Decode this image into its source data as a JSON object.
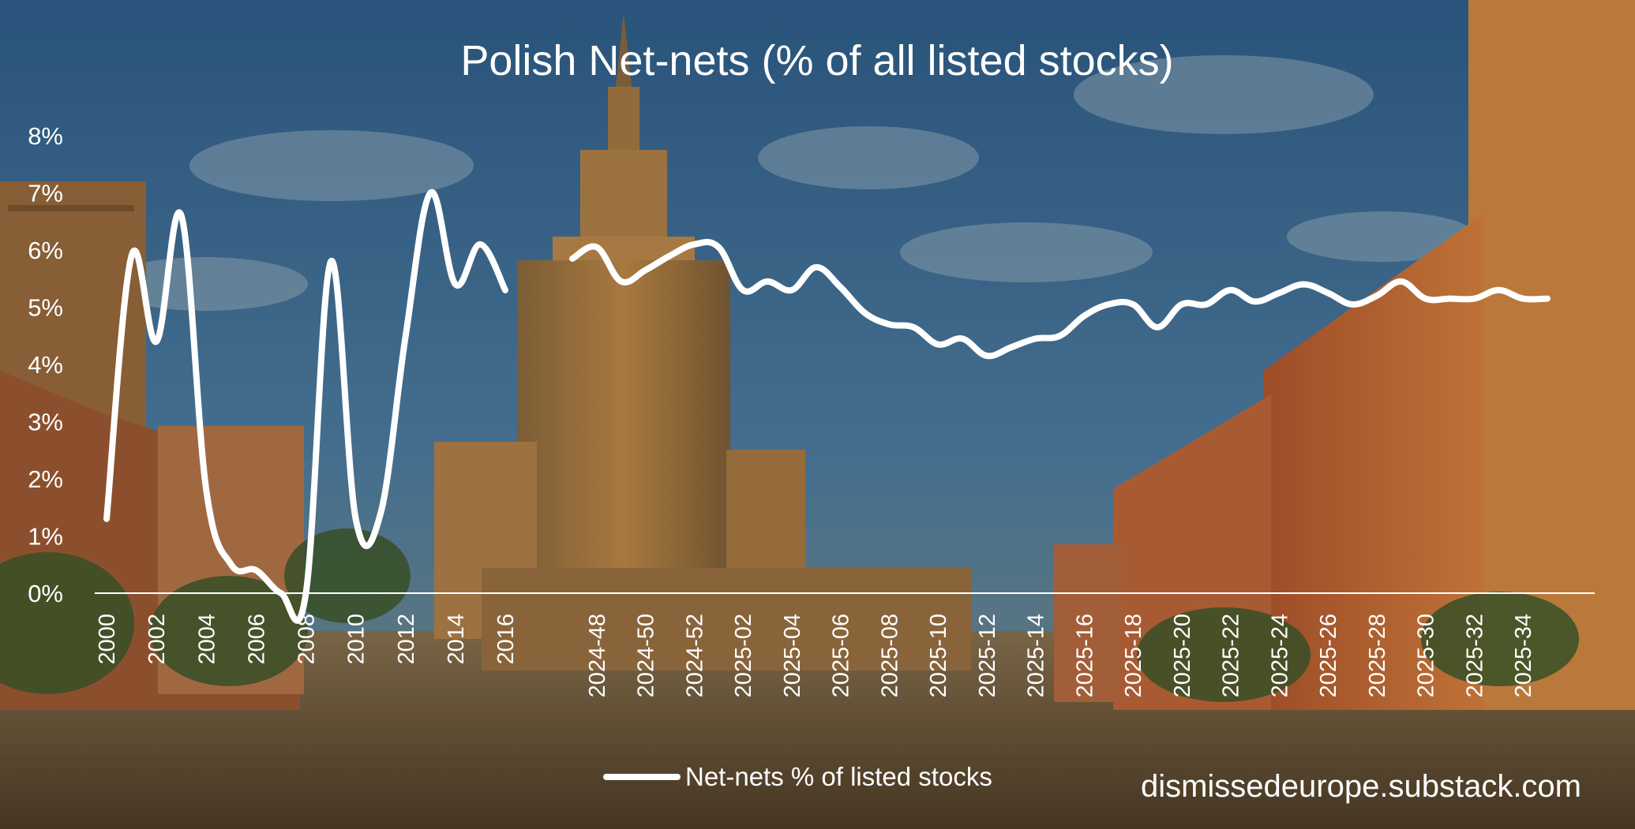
{
  "watermark": "dismissedeurope.substack.com",
  "colors": {
    "line": "#ffffff",
    "text": "#ffffff",
    "sky": "#3f6f96",
    "ground": "#6b5536",
    "building": "#b07a3e"
  },
  "chart_data": {
    "type": "line",
    "title": "Polish Net-nets (% of all listed stocks)",
    "xlabel": "",
    "ylabel": "",
    "ylim": [
      0,
      8
    ],
    "y_tick_labels": [
      "0%",
      "1%",
      "2%",
      "3%",
      "4%",
      "5%",
      "6%",
      "7%",
      "8%"
    ],
    "grid": false,
    "legend_position": "bottom",
    "x_tick_labels": [
      "2000",
      "2002",
      "2004",
      "2006",
      "2008",
      "2010",
      "2012",
      "2014",
      "2016",
      "2024-48",
      "2024-50",
      "2024-52",
      "2025-02",
      "2025-04",
      "2025-06",
      "2025-08",
      "2025-10",
      "2025-12",
      "2025-14",
      "2025-16",
      "2025-18",
      "2025-20",
      "2025-22",
      "2025-24",
      "2025-26",
      "2025-28",
      "2025-30",
      "2025-32",
      "2025-34"
    ],
    "series": [
      {
        "name": "Net-nets % of listed stocks",
        "segments": [
          {
            "x": [
              "2000",
              "2001",
              "2002",
              "2003",
              "2004",
              "2005",
              "2006",
              "2007",
              "2008",
              "2009",
              "2010",
              "2011",
              "2012",
              "2013",
              "2014",
              "2015",
              "2016"
            ],
            "values": [
              1.3,
              5.9,
              4.4,
              6.6,
              1.8,
              0.5,
              0.4,
              0.0,
              0.0,
              5.8,
              1.3,
              1.4,
              4.5,
              7.0,
              5.4,
              6.1,
              5.3
            ]
          },
          {
            "x": [
              "2024-47",
              "2024-48",
              "2024-49",
              "2024-50",
              "2024-51",
              "2024-52",
              "2025-01",
              "2025-02",
              "2025-03",
              "2025-04",
              "2025-05",
              "2025-06",
              "2025-07",
              "2025-08",
              "2025-09",
              "2025-10",
              "2025-11",
              "2025-12",
              "2025-13",
              "2025-14",
              "2025-15",
              "2025-16",
              "2025-17",
              "2025-18",
              "2025-19",
              "2025-20",
              "2025-21",
              "2025-22",
              "2025-23",
              "2025-24",
              "2025-25",
              "2025-26",
              "2025-27",
              "2025-28",
              "2025-29",
              "2025-30",
              "2025-31",
              "2025-32",
              "2025-33",
              "2025-34",
              "2025-35"
            ],
            "values": [
              5.85,
              6.05,
              5.45,
              5.65,
              5.9,
              6.1,
              6.05,
              5.3,
              5.45,
              5.3,
              5.7,
              5.35,
              4.9,
              4.7,
              4.65,
              4.35,
              4.45,
              4.15,
              4.3,
              4.45,
              4.5,
              4.85,
              5.05,
              5.05,
              4.65,
              5.05,
              5.05,
              5.3,
              5.1,
              5.25,
              5.4,
              5.25,
              5.05,
              5.2,
              5.45,
              5.15,
              5.15,
              5.15,
              5.3,
              5.15,
              5.15
            ]
          }
        ]
      }
    ]
  }
}
